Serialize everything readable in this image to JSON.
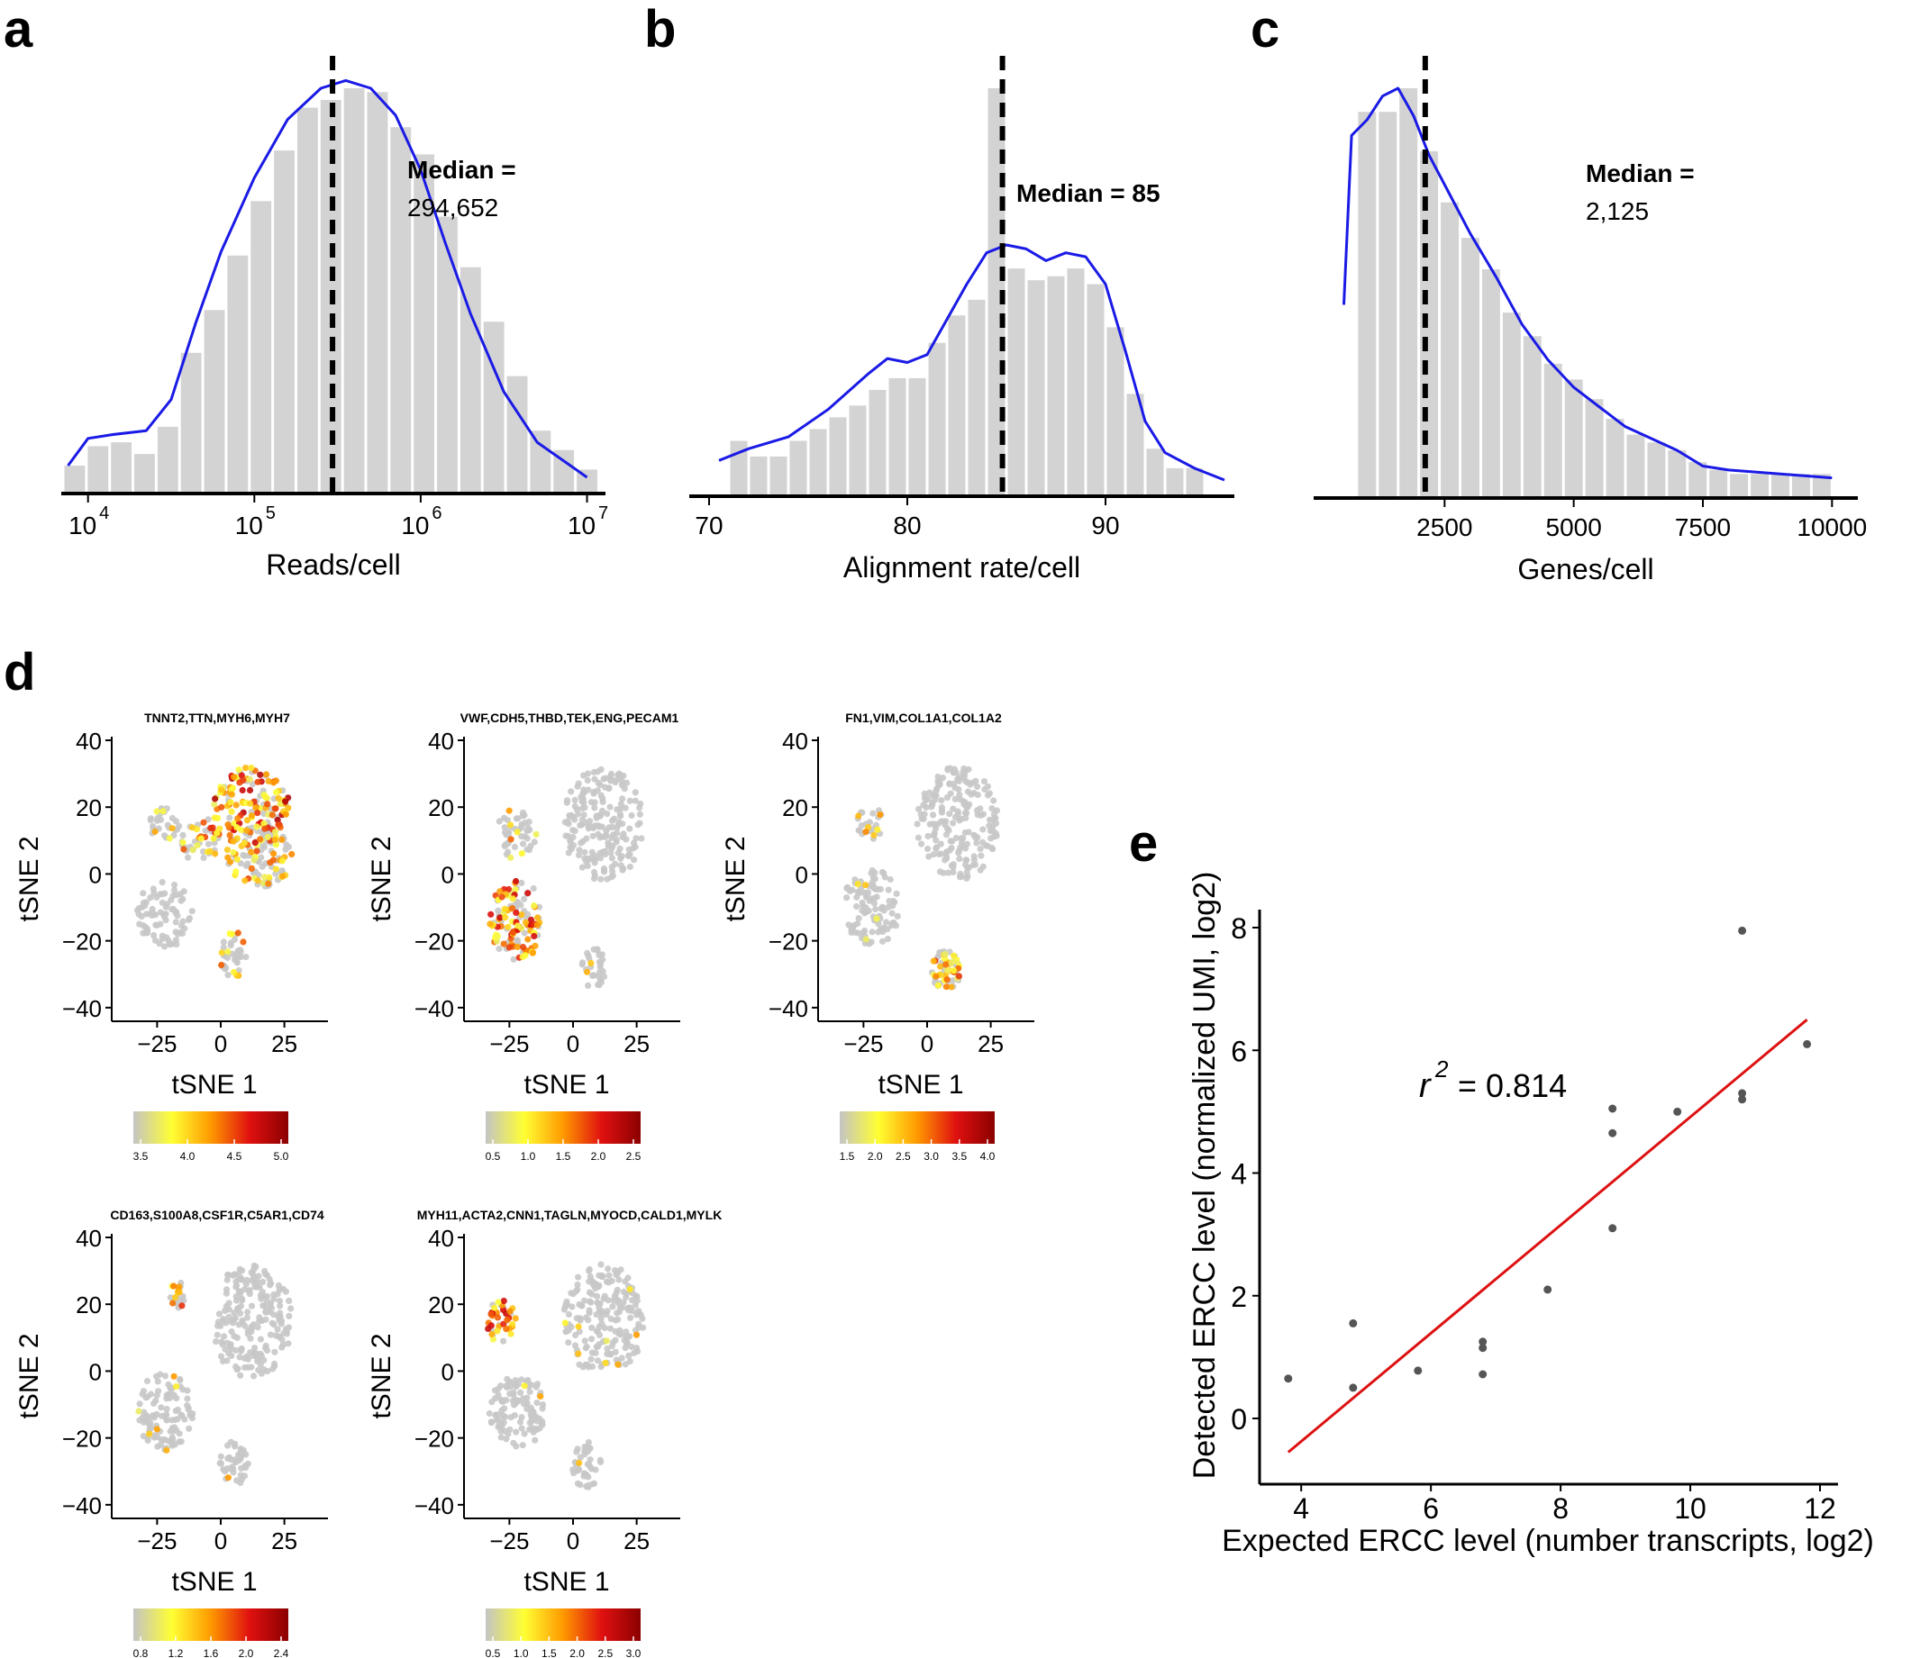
{
  "panel_labels": {
    "a": "a",
    "b": "b",
    "c": "c",
    "d": "d",
    "e": "e"
  },
  "colors": {
    "bar": "#d3d3d3",
    "density": "#1a1ae6",
    "median_line": "#000000",
    "fit_line": "#dd1111",
    "point": "#555555",
    "tsne_grey": "#c8c8c8",
    "gradient": [
      "#c4c4c4",
      "#ffff33",
      "#ff9900",
      "#e01010",
      "#8b0000"
    ]
  },
  "chart_data": [
    {
      "id": "a",
      "type": "bar",
      "xlabel": "Reads/cell",
      "x_scale": "log10",
      "xlim": [
        3.85,
        7.1
      ],
      "xtick_values": [
        4,
        5,
        6,
        7
      ],
      "xtick_bases": [
        "10",
        "10",
        "10",
        "10"
      ],
      "xtick_exps": [
        "4",
        "5",
        "6",
        "7"
      ],
      "bin_width": 0.14,
      "bins": [
        [
          3.85,
          0.03
        ],
        [
          3.99,
          0.08
        ],
        [
          4.13,
          0.09
        ],
        [
          4.27,
          0.06
        ],
        [
          4.41,
          0.13
        ],
        [
          4.55,
          0.32
        ],
        [
          4.69,
          0.43
        ],
        [
          4.83,
          0.57
        ],
        [
          4.97,
          0.71
        ],
        [
          5.11,
          0.84
        ],
        [
          5.25,
          0.95
        ],
        [
          5.39,
          0.97
        ],
        [
          5.53,
          1.0
        ],
        [
          5.67,
          0.99
        ],
        [
          5.81,
          0.9
        ],
        [
          5.95,
          0.83
        ],
        [
          6.09,
          0.67
        ],
        [
          6.23,
          0.54
        ],
        [
          6.37,
          0.4
        ],
        [
          6.51,
          0.26
        ],
        [
          6.65,
          0.12
        ],
        [
          6.79,
          0.07
        ],
        [
          6.93,
          0.02
        ]
      ],
      "density": [
        [
          3.88,
          0.03
        ],
        [
          4.0,
          0.1
        ],
        [
          4.15,
          0.11
        ],
        [
          4.35,
          0.12
        ],
        [
          4.5,
          0.2
        ],
        [
          4.65,
          0.4
        ],
        [
          4.8,
          0.58
        ],
        [
          5.0,
          0.77
        ],
        [
          5.2,
          0.92
        ],
        [
          5.4,
          1.0
        ],
        [
          5.55,
          1.02
        ],
        [
          5.7,
          1.0
        ],
        [
          5.85,
          0.93
        ],
        [
          6.0,
          0.79
        ],
        [
          6.15,
          0.6
        ],
        [
          6.3,
          0.42
        ],
        [
          6.5,
          0.22
        ],
        [
          6.7,
          0.09
        ],
        [
          6.9,
          0.03
        ],
        [
          7.0,
          0.0
        ]
      ],
      "median_x": 5.47,
      "median_title": "Median =",
      "median_value": "294,652"
    },
    {
      "id": "b",
      "type": "bar",
      "xlabel": "Alignment rate/cell",
      "xlim": [
        69,
        96.5
      ],
      "xtick_values": [
        70,
        80,
        90
      ],
      "xtick_labels": [
        "70",
        "80",
        "90"
      ],
      "bin_width": 1,
      "bins": [
        [
          71,
          0.1
        ],
        [
          72,
          0.06
        ],
        [
          73,
          0.06
        ],
        [
          74,
          0.1
        ],
        [
          75,
          0.13
        ],
        [
          76,
          0.16
        ],
        [
          77,
          0.19
        ],
        [
          78,
          0.23
        ],
        [
          79,
          0.26
        ],
        [
          80,
          0.26
        ],
        [
          81,
          0.35
        ],
        [
          82,
          0.42
        ],
        [
          83,
          0.46
        ],
        [
          84,
          1.0
        ],
        [
          85,
          0.54
        ],
        [
          86,
          0.51
        ],
        [
          87,
          0.52
        ],
        [
          88,
          0.54
        ],
        [
          89,
          0.5
        ],
        [
          90,
          0.39
        ],
        [
          91,
          0.22
        ],
        [
          92,
          0.08
        ],
        [
          93,
          0.03
        ],
        [
          94,
          0.03
        ]
      ],
      "density": [
        [
          70.5,
          0.05
        ],
        [
          72,
          0.08
        ],
        [
          74,
          0.11
        ],
        [
          76,
          0.18
        ],
        [
          78,
          0.27
        ],
        [
          79,
          0.31
        ],
        [
          80,
          0.3
        ],
        [
          81,
          0.32
        ],
        [
          82,
          0.41
        ],
        [
          83,
          0.5
        ],
        [
          84,
          0.58
        ],
        [
          85,
          0.6
        ],
        [
          86,
          0.59
        ],
        [
          87,
          0.56
        ],
        [
          88,
          0.58
        ],
        [
          89,
          0.57
        ],
        [
          90,
          0.5
        ],
        [
          91,
          0.33
        ],
        [
          92,
          0.15
        ],
        [
          93,
          0.07
        ],
        [
          94.5,
          0.03
        ],
        [
          96,
          0.0
        ]
      ],
      "median_x": 84.8,
      "median_title": "Median = 85"
    },
    {
      "id": "c",
      "type": "bar",
      "xlabel": "Genes/cell",
      "xlim": [
        0,
        10500
      ],
      "xtick_values": [
        2500,
        5000,
        7500,
        10000
      ],
      "xtick_labels": [
        "2500",
        "5000",
        "7500",
        "10000"
      ],
      "bin_width": 400,
      "bins": [
        [
          800,
          0.94
        ],
        [
          1200,
          0.94
        ],
        [
          1600,
          1.0
        ],
        [
          2000,
          0.84
        ],
        [
          2400,
          0.71
        ],
        [
          2800,
          0.62
        ],
        [
          3200,
          0.54
        ],
        [
          3600,
          0.43
        ],
        [
          4000,
          0.37
        ],
        [
          4400,
          0.3
        ],
        [
          4800,
          0.26
        ],
        [
          5200,
          0.21
        ],
        [
          5600,
          0.16
        ],
        [
          6000,
          0.12
        ],
        [
          6400,
          0.1
        ],
        [
          6800,
          0.08
        ],
        [
          7200,
          0.05
        ],
        [
          7600,
          0.03
        ],
        [
          8000,
          0.02
        ],
        [
          8400,
          0.02
        ],
        [
          8800,
          0.02
        ],
        [
          9200,
          0.02
        ],
        [
          9600,
          0.02
        ]
      ],
      "density": [
        [
          550,
          0.45
        ],
        [
          700,
          0.88
        ],
        [
          1000,
          0.92
        ],
        [
          1300,
          0.98
        ],
        [
          1600,
          1.0
        ],
        [
          1900,
          0.93
        ],
        [
          2200,
          0.83
        ],
        [
          2600,
          0.73
        ],
        [
          3000,
          0.63
        ],
        [
          3500,
          0.52
        ],
        [
          4000,
          0.4
        ],
        [
          4500,
          0.31
        ],
        [
          5000,
          0.24
        ],
        [
          5500,
          0.19
        ],
        [
          6000,
          0.14
        ],
        [
          6500,
          0.11
        ],
        [
          7000,
          0.08
        ],
        [
          7500,
          0.04
        ],
        [
          8000,
          0.03
        ],
        [
          9000,
          0.02
        ],
        [
          10000,
          0.01
        ]
      ],
      "median_x": 2125,
      "median_title": "Median =",
      "median_value": "2,125"
    },
    {
      "id": "d1",
      "type": "scatter",
      "title": "TNNT2,TTN,MYH6,MYH7",
      "xlabel": "tSNE 1",
      "ylabel": "tSNE 2",
      "xlim": [
        -40,
        40
      ],
      "ylim": [
        -43,
        40
      ],
      "xtick_values": [
        -25,
        0,
        25
      ],
      "xtick_labels": [
        "−25",
        "0",
        "25"
      ],
      "ytick_values": [
        40,
        20,
        0,
        -20,
        -40
      ],
      "ytick_labels": [
        "40",
        "20",
        "0",
        "−20",
        "−40"
      ],
      "clusters": [
        {
          "cx": 12,
          "cy": 20,
          "rx": 15,
          "ry": 12,
          "n": 150,
          "level": 0.78
        },
        {
          "cx": 15,
          "cy": 5,
          "rx": 13,
          "ry": 9,
          "n": 110,
          "level": 0.35
        },
        {
          "cx": -8,
          "cy": 10,
          "rx": 8,
          "ry": 7,
          "n": 45,
          "level": 0.45
        },
        {
          "cx": -22,
          "cy": -12,
          "rx": 11,
          "ry": 10,
          "n": 80,
          "level": 0.0
        },
        {
          "cx": 5,
          "cy": -25,
          "rx": 5,
          "ry": 8,
          "n": 40,
          "level": 0.3
        },
        {
          "cx": -22,
          "cy": 15,
          "rx": 6,
          "ry": 5,
          "n": 30,
          "level": 0.15
        }
      ],
      "colorbar_ticks": [
        "3.5",
        "4.0",
        "4.5",
        "5.0"
      ]
    },
    {
      "id": "d2",
      "type": "scatter",
      "title": "VWF,CDH5,THBD,TEK,ENG,PECAM1",
      "xlabel": "tSNE 1",
      "ylabel": "tSNE 2",
      "xlim": [
        -40,
        40
      ],
      "ylim": [
        -43,
        40
      ],
      "xtick_values": [
        -25,
        0,
        25
      ],
      "xtick_labels": [
        "−25",
        "0",
        "25"
      ],
      "ytick_values": [
        40,
        20,
        0,
        -20,
        -40
      ],
      "ytick_labels": [
        "40",
        "20",
        "0",
        "−20",
        "−40"
      ],
      "clusters": [
        {
          "cx": 12,
          "cy": 15,
          "rx": 16,
          "ry": 17,
          "n": 200,
          "level": 0.0
        },
        {
          "cx": -22,
          "cy": -14,
          "rx": 11,
          "ry": 12,
          "n": 120,
          "level": 0.65
        },
        {
          "cx": -22,
          "cy": 12,
          "rx": 8,
          "ry": 8,
          "n": 45,
          "level": 0.25
        },
        {
          "cx": 8,
          "cy": -28,
          "rx": 5,
          "ry": 6,
          "n": 30,
          "level": 0.05
        }
      ],
      "colorbar_ticks": [
        "0.5",
        "1.0",
        "1.5",
        "2.0",
        "2.5"
      ]
    },
    {
      "id": "d3",
      "type": "scatter",
      "title": "FN1,VIM,COL1A1,COL1A2",
      "xlabel": "tSNE 1",
      "ylabel": "tSNE 2",
      "xlim": [
        -40,
        40
      ],
      "ylim": [
        -43,
        40
      ],
      "xtick_values": [
        -25,
        0,
        25
      ],
      "xtick_labels": [
        "−25",
        "0",
        "25"
      ],
      "ytick_values": [
        40,
        20,
        0,
        -20,
        -40
      ],
      "ytick_labels": [
        "40",
        "20",
        "0",
        "−20",
        "−40"
      ],
      "clusters": [
        {
          "cx": 12,
          "cy": 15,
          "rx": 16,
          "ry": 17,
          "n": 200,
          "level": 0.0
        },
        {
          "cx": -22,
          "cy": -10,
          "rx": 11,
          "ry": 12,
          "n": 100,
          "level": 0.03
        },
        {
          "cx": -22,
          "cy": 15,
          "rx": 6,
          "ry": 5,
          "n": 25,
          "level": 0.2
        },
        {
          "cx": 7,
          "cy": -29,
          "rx": 6,
          "ry": 6,
          "n": 60,
          "level": 0.55
        }
      ],
      "colorbar_ticks": [
        "1.5",
        "2.0",
        "2.5",
        "3.0",
        "3.5",
        "4.0"
      ]
    },
    {
      "id": "d4",
      "type": "scatter",
      "title": "CD163,S100A8,CSF1R,C5AR1,CD74",
      "xlabel": "tSNE 1",
      "ylabel": "tSNE 2",
      "xlim": [
        -40,
        40
      ],
      "ylim": [
        -43,
        40
      ],
      "xtick_values": [
        -25,
        0,
        25
      ],
      "xtick_labels": [
        "−25",
        "0",
        "25"
      ],
      "ytick_values": [
        40,
        20,
        0,
        -20,
        -40
      ],
      "ytick_labels": [
        "40",
        "20",
        "0",
        "−20",
        "−40"
      ],
      "clusters": [
        {
          "cx": 12,
          "cy": 15,
          "rx": 16,
          "ry": 17,
          "n": 200,
          "level": 0.0
        },
        {
          "cx": -22,
          "cy": -12,
          "rx": 11,
          "ry": 12,
          "n": 110,
          "level": 0.03
        },
        {
          "cx": -17,
          "cy": 22,
          "rx": 3,
          "ry": 5,
          "n": 20,
          "level": 0.45
        },
        {
          "cx": 5,
          "cy": -28,
          "rx": 6,
          "ry": 7,
          "n": 40,
          "level": 0.02
        }
      ],
      "colorbar_ticks": [
        "0.8",
        "1.2",
        "1.6",
        "2.0",
        "2.4"
      ]
    },
    {
      "id": "d5",
      "type": "scatter",
      "title": "MYH11,ACTA2,CNN1,TAGLN,MYOCD,CALD1,MYLK",
      "xlabel": "tSNE 1",
      "ylabel": "tSNE 2",
      "xlim": [
        -40,
        40
      ],
      "ylim": [
        -43,
        40
      ],
      "xtick_values": [
        -25,
        0,
        25
      ],
      "xtick_labels": [
        "−25",
        "0",
        "25"
      ],
      "ytick_values": [
        40,
        20,
        0,
        -20,
        -40
      ],
      "ytick_labels": [
        "40",
        "20",
        "0",
        "−20",
        "−40"
      ],
      "clusters": [
        {
          "cx": 12,
          "cy": 15,
          "rx": 16,
          "ry": 17,
          "n": 200,
          "level": 0.03
        },
        {
          "cx": -22,
          "cy": -12,
          "rx": 11,
          "ry": 12,
          "n": 110,
          "level": 0.03
        },
        {
          "cx": -28,
          "cy": 15,
          "rx": 6,
          "ry": 7,
          "n": 40,
          "level": 0.7
        },
        {
          "cx": 5,
          "cy": -28,
          "rx": 6,
          "ry": 7,
          "n": 40,
          "level": 0.02
        }
      ],
      "colorbar_ticks": [
        "0.5",
        "1.0",
        "1.5",
        "2.0",
        "2.5",
        "3.0"
      ]
    },
    {
      "id": "e",
      "type": "scatter",
      "xlabel": "Expected ERCC level (number transcripts, log2)",
      "ylabel": "Detected ERCC level (normalized UMI, log2)",
      "xlim": [
        3.5,
        12.2
      ],
      "ylim": [
        -1.0,
        8.4
      ],
      "xtick_values": [
        4,
        6,
        8,
        10,
        12
      ],
      "xtick_labels": [
        "4",
        "6",
        "8",
        "10",
        "12"
      ],
      "ytick_values": [
        0,
        2,
        4,
        6,
        8
      ],
      "ytick_labels": [
        "0",
        "2",
        "4",
        "6",
        "8"
      ],
      "points": [
        [
          3.8,
          0.65
        ],
        [
          4.8,
          1.55
        ],
        [
          4.8,
          0.5
        ],
        [
          5.8,
          0.78
        ],
        [
          6.8,
          1.25
        ],
        [
          6.8,
          1.15
        ],
        [
          6.8,
          0.72
        ],
        [
          7.8,
          2.1
        ],
        [
          8.8,
          5.05
        ],
        [
          8.8,
          4.65
        ],
        [
          8.8,
          3.1
        ],
        [
          9.8,
          5.0
        ],
        [
          10.8,
          7.95
        ],
        [
          10.8,
          5.3
        ],
        [
          10.8,
          5.2
        ],
        [
          11.8,
          6.1
        ]
      ],
      "fit_line": [
        [
          3.8,
          -0.55
        ],
        [
          11.8,
          6.5
        ]
      ],
      "r2_symbol": "r",
      "r2_exp": "2",
      "r2_value": "= 0.814"
    }
  ]
}
